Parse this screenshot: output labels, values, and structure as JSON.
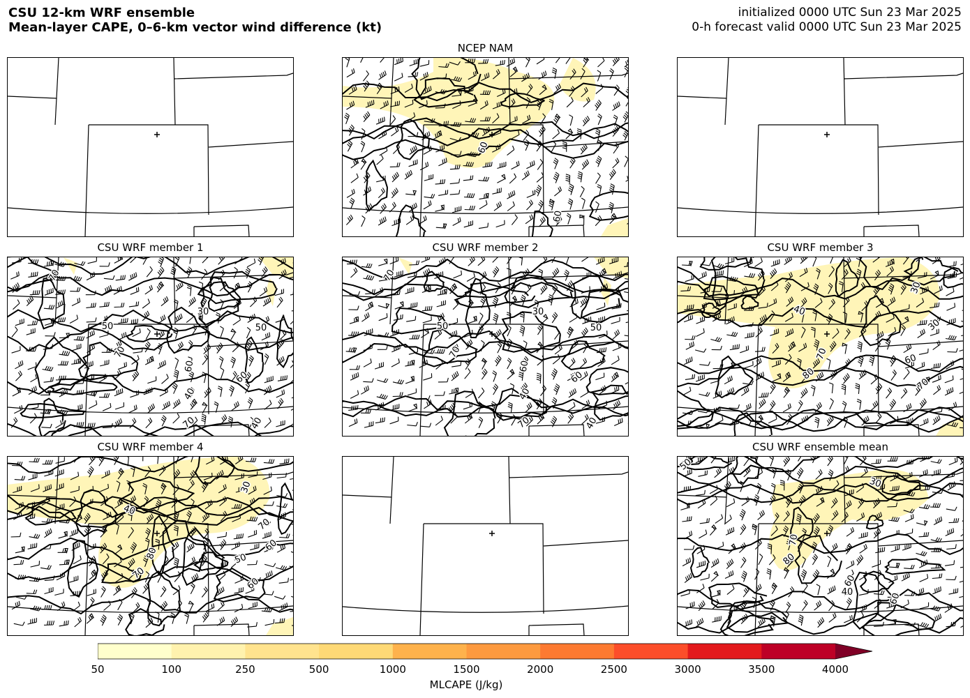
{
  "header": {
    "title_line1": "CSU 12-km WRF ensemble",
    "title_line2": "Mean-layer CAPE, 0–6-km vector wind difference (kt)",
    "init_line": "initialized 0000 UTC Sun 23 Mar 2025",
    "valid_line": "0-h forecast valid 0000 UTC Sun 23 Mar 2025"
  },
  "panels": [
    {
      "title": "",
      "kind": "blank",
      "labels": []
    },
    {
      "title": "NCEP NAM",
      "kind": "nam",
      "labels": [
        "60",
        "60"
      ]
    },
    {
      "title": "",
      "kind": "blank",
      "labels": []
    },
    {
      "title": "CSU WRF member 1",
      "kind": "m12",
      "labels": [
        "70",
        "30",
        "50",
        "50",
        "70",
        "60",
        "60",
        "40",
        "70",
        "40"
      ]
    },
    {
      "title": "CSU WRF member 2",
      "kind": "m12",
      "labels": [
        "70",
        "30",
        "50",
        "50",
        "70",
        "60",
        "60",
        "40",
        "70",
        "40"
      ]
    },
    {
      "title": "CSU WRF member 3",
      "kind": "m34",
      "labels": [
        "30",
        "40",
        "60",
        "70",
        "80",
        "70",
        "30"
      ]
    },
    {
      "title": "CSU WRF member 4",
      "kind": "m34",
      "labels": [
        "30",
        "40",
        "50",
        "60",
        "70",
        "80",
        "70",
        "60"
      ]
    },
    {
      "title": "",
      "kind": "blank",
      "labels": []
    },
    {
      "title": "CSU WRF ensemble mean",
      "kind": "mean",
      "labels": [
        "30",
        "60",
        "70",
        "80",
        "40",
        "60",
        "50"
      ]
    }
  ],
  "colorbar": {
    "title": "MLCAPE (J/kg)",
    "ticks": [
      "50",
      "100",
      "250",
      "500",
      "1000",
      "1500",
      "2000",
      "2500",
      "3000",
      "3500",
      "4000"
    ],
    "colors": [
      "#ffffcc",
      "#fff2ae",
      "#ffe38e",
      "#fed976",
      "#feb24c",
      "#fd9a3f",
      "#fd7a31",
      "#fc4e2a",
      "#e31a1c",
      "#bd0026",
      "#800026"
    ],
    "extend_color": "#800026"
  }
}
